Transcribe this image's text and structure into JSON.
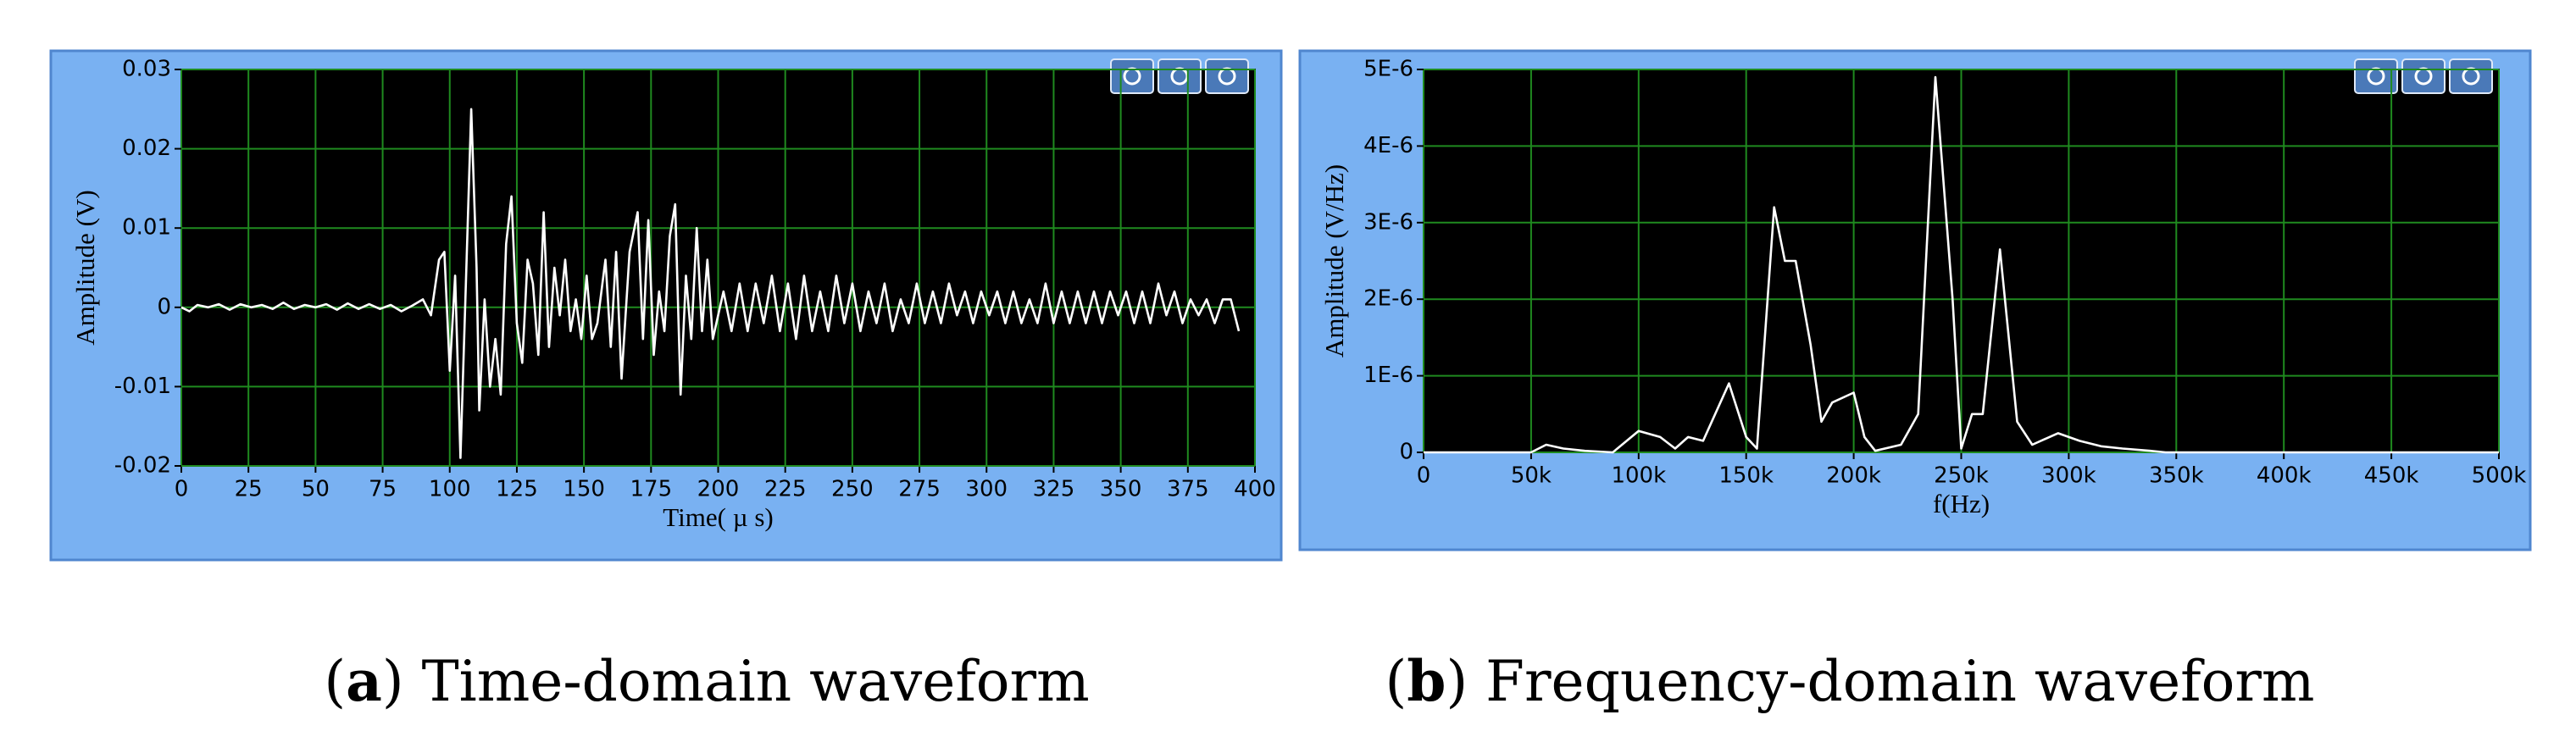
{
  "chart_data": [
    {
      "type": "line",
      "caption": [
        "(",
        "a",
        ") Time-domain waveform"
      ],
      "xlabel": "Time( µ s)",
      "ylabel": "Amplitude (V)",
      "xlim": [
        0,
        400
      ],
      "xticks": [
        0,
        25,
        50,
        75,
        100,
        125,
        150,
        175,
        200,
        225,
        250,
        275,
        300,
        325,
        350,
        375,
        400
      ],
      "ylim": [
        -0.02,
        0.03
      ],
      "yticks": [
        -0.02,
        -0.01,
        0,
        0.01,
        0.02,
        0.03
      ],
      "grid": true,
      "series": [
        {
          "color": "#ffffff",
          "x": [
            0,
            3,
            6,
            10,
            14,
            18,
            22,
            26,
            30,
            34,
            38,
            42,
            46,
            50,
            54,
            58,
            62,
            66,
            70,
            74,
            78,
            82,
            86,
            90,
            93,
            96,
            98,
            100,
            102,
            104,
            106,
            108,
            110,
            111,
            113,
            115,
            117,
            119,
            121,
            123,
            125,
            127,
            129,
            131,
            133,
            135,
            137,
            139,
            141,
            143,
            145,
            147,
            149,
            151,
            153,
            155,
            158,
            160,
            162,
            164,
            167,
            170,
            172,
            174,
            176,
            178,
            180,
            182,
            184,
            186,
            188,
            190,
            192,
            194,
            196,
            198,
            200,
            202,
            205,
            208,
            211,
            214,
            217,
            220,
            223,
            226,
            229,
            232,
            235,
            238,
            241,
            244,
            247,
            250,
            253,
            256,
            259,
            262,
            265,
            268,
            271,
            274,
            277,
            280,
            283,
            286,
            289,
            292,
            295,
            298,
            301,
            304,
            307,
            310,
            313,
            316,
            319,
            322,
            325,
            328,
            331,
            334,
            337,
            340,
            343,
            346,
            349,
            352,
            355,
            358,
            361,
            364,
            367,
            370,
            373,
            376,
            379,
            382,
            385,
            388,
            391,
            394
          ],
          "values": [
            0,
            -0.0005,
            0.0003,
            0,
            0.0004,
            -0.0003,
            0.0004,
            0,
            0.0003,
            -0.0002,
            0.0006,
            -0.0002,
            0.0003,
            0,
            0.0004,
            -0.0003,
            0.0005,
            -0.0002,
            0.0004,
            -0.0002,
            0.0003,
            -0.0005,
            0.0002,
            0.001,
            -0.001,
            0.006,
            0.007,
            -0.008,
            0.004,
            -0.019,
            0.003,
            0.025,
            0.005,
            -0.013,
            0.001,
            -0.01,
            -0.004,
            -0.011,
            0.008,
            0.014,
            -0.002,
            -0.007,
            0.006,
            0.003,
            -0.006,
            0.012,
            -0.005,
            0.005,
            -0.001,
            0.006,
            -0.003,
            0.001,
            -0.004,
            0.004,
            -0.004,
            -0.002,
            0.006,
            -0.005,
            0.007,
            -0.009,
            0.007,
            0.012,
            -0.004,
            0.011,
            -0.006,
            0.002,
            -0.003,
            0.009,
            0.013,
            -0.011,
            0.004,
            -0.004,
            0.01,
            -0.003,
            0.006,
            -0.004,
            -0.001,
            0.002,
            -0.003,
            0.003,
            -0.003,
            0.003,
            -0.002,
            0.004,
            -0.003,
            0.003,
            -0.004,
            0.004,
            -0.003,
            0.002,
            -0.003,
            0.004,
            -0.002,
            0.003,
            -0.003,
            0.002,
            -0.002,
            0.003,
            -0.003,
            0.001,
            -0.002,
            0.003,
            -0.002,
            0.002,
            -0.002,
            0.003,
            -0.001,
            0.002,
            -0.002,
            0.002,
            -0.001,
            0.002,
            -0.002,
            0.002,
            -0.002,
            0.001,
            -0.002,
            0.003,
            -0.002,
            0.002,
            -0.002,
            0.002,
            -0.002,
            0.002,
            -0.002,
            0.002,
            -0.001,
            0.002,
            -0.002,
            0.002,
            -0.002,
            0.003,
            -0.001,
            0.002,
            -0.002,
            0.001,
            -0.001,
            0.001,
            -0.002,
            0.001,
            0.001,
            -0.003
          ]
        }
      ]
    },
    {
      "type": "line",
      "caption": [
        "(",
        "b",
        ") Frequency-domain waveform"
      ],
      "xlabel": "f(Hz)",
      "ylabel": "Amplitude (V/Hz)",
      "xlim": [
        0,
        500000
      ],
      "xticks": [
        0,
        {
          "value": 50000,
          "label": "50k"
        },
        {
          "value": 100000,
          "label": "100k"
        },
        {
          "value": 150000,
          "label": "150k"
        },
        {
          "value": 200000,
          "label": "200k"
        },
        {
          "value": 250000,
          "label": "250k"
        },
        {
          "value": 300000,
          "label": "300k"
        },
        {
          "value": 350000,
          "label": "350k"
        },
        {
          "value": 400000,
          "label": "400k"
        },
        {
          "value": 450000,
          "label": "450k"
        },
        {
          "value": 500000,
          "label": "500k"
        }
      ],
      "ylim": [
        0,
        5e-06
      ],
      "yticks": [
        0,
        {
          "value": 1e-06,
          "label": "1E-6"
        },
        {
          "value": 2e-06,
          "label": "2E-6"
        },
        {
          "value": 3e-06,
          "label": "3E-6"
        },
        {
          "value": 4e-06,
          "label": "4E-6"
        },
        {
          "value": 5e-06,
          "label": "5E-6"
        }
      ],
      "grid": true,
      "series": [
        {
          "color": "#ffffff",
          "x": [
            0,
            50000,
            57000,
            65000,
            75000,
            88000,
            100000,
            110000,
            117000,
            123000,
            130000,
            142000,
            150000,
            155000,
            163000,
            168000,
            173000,
            180000,
            185000,
            190000,
            200000,
            205000,
            210000,
            222000,
            230000,
            238000,
            246000,
            250000,
            255000,
            260000,
            268000,
            276000,
            283000,
            295000,
            305000,
            315000,
            325000,
            338000,
            345000,
            500000
          ],
          "values": [
            0,
            0,
            1e-07,
            5e-08,
            2e-08,
            0,
            2.8e-07,
            2e-07,
            5e-08,
            2e-07,
            1.5e-07,
            9e-07,
            2e-07,
            5e-08,
            3.2e-06,
            2.5e-06,
            2.5e-06,
            1.4e-06,
            4e-07,
            6.5e-07,
            7.8e-07,
            2e-07,
            2e-08,
            1e-07,
            5e-07,
            4.9e-06,
            2e-06,
            5e-08,
            5e-07,
            5e-07,
            2.65e-06,
            4e-07,
            1e-07,
            2.5e-07,
            1.5e-07,
            8e-08,
            5e-08,
            2e-08,
            0,
            0
          ]
        }
      ]
    }
  ]
}
